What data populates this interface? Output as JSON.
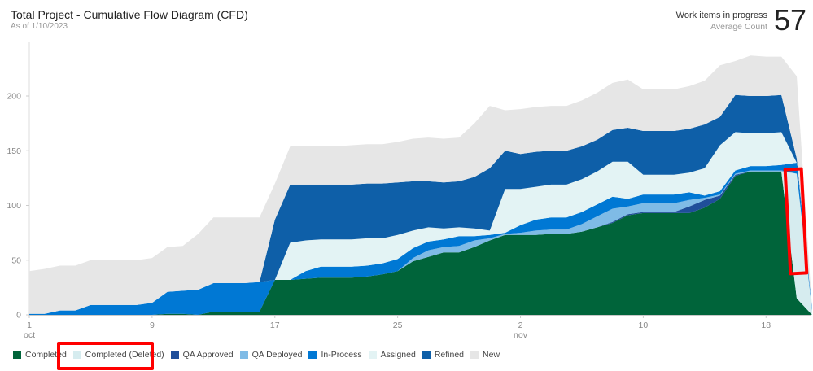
{
  "header": {
    "title": "Total Project - Cumulative Flow Diagram (CFD)",
    "subtitle": "As of 1/10/2023"
  },
  "kpi": {
    "label": "Work items in progress",
    "sublabel": "Average Count",
    "value": "57"
  },
  "legend": [
    {
      "label": "Completed",
      "color": "#00643a"
    },
    {
      "label": "Completed (Deleted)",
      "color": "#d6ecef"
    },
    {
      "label": "QA Approved",
      "color": "#1f4e9a"
    },
    {
      "label": "QA Deployed",
      "color": "#7fbbe6"
    },
    {
      "label": "In-Process",
      "color": "#0078d4"
    },
    {
      "label": "Assigned",
      "color": "#e3f3f4"
    },
    {
      "label": "Refined",
      "color": "#0e5fa8"
    },
    {
      "label": "New",
      "color": "#e6e6e6"
    }
  ],
  "axis": {
    "y_ticks": [
      "0",
      "50",
      "100",
      "150",
      "200"
    ],
    "x_ticks": [
      {
        "day": "1",
        "month": "oct"
      },
      {
        "day": "9",
        "month": ""
      },
      {
        "day": "17",
        "month": ""
      },
      {
        "day": "25",
        "month": ""
      },
      {
        "day": "2",
        "month": "nov"
      },
      {
        "day": "10",
        "month": ""
      },
      {
        "day": "18",
        "month": ""
      }
    ]
  },
  "chart_data": {
    "type": "area",
    "title": "Total Project - Cumulative Flow Diagram (CFD)",
    "subtitle": "As of 1/10/2023",
    "xlabel": "",
    "ylabel": "",
    "ylim": [
      0,
      240
    ],
    "grid": false,
    "legend_position": "bottom",
    "stacked": true,
    "x": [
      "Oct 1",
      "Oct 2",
      "Oct 3",
      "Oct 4",
      "Oct 5",
      "Oct 6",
      "Oct 7",
      "Oct 8",
      "Oct 9",
      "Oct 10",
      "Oct 11",
      "Oct 12",
      "Oct 13",
      "Oct 14",
      "Oct 15",
      "Oct 16",
      "Oct 17",
      "Oct 18",
      "Oct 19",
      "Oct 20",
      "Oct 21",
      "Oct 22",
      "Oct 23",
      "Oct 24",
      "Oct 25",
      "Oct 26",
      "Oct 27",
      "Oct 28",
      "Oct 29",
      "Oct 30",
      "Oct 31",
      "Nov 1",
      "Nov 2",
      "Nov 3",
      "Nov 4",
      "Nov 5",
      "Nov 6",
      "Nov 7",
      "Nov 8",
      "Nov 9",
      "Nov 10",
      "Nov 11",
      "Nov 12",
      "Nov 13",
      "Nov 14",
      "Nov 15",
      "Nov 16",
      "Nov 17",
      "Nov 18",
      "Nov 19",
      "Nov 20",
      "Nov 21"
    ],
    "series": [
      {
        "name": "Completed",
        "values": [
          0,
          0,
          0,
          0,
          0,
          0,
          0,
          0,
          0,
          1,
          1,
          0,
          3,
          3,
          3,
          3,
          32,
          32,
          33,
          34,
          34,
          34,
          35,
          37,
          40,
          49,
          53,
          57,
          57,
          62,
          68,
          73,
          73,
          73,
          74,
          74,
          76,
          80,
          84,
          91,
          93,
          93,
          93,
          93,
          98,
          106,
          127,
          131,
          131,
          131,
          15,
          0
        ]
      },
      {
        "name": "Completed (Deleted)",
        "values": [
          0,
          0,
          0,
          0,
          0,
          0,
          0,
          0,
          0,
          0,
          0,
          0,
          0,
          0,
          0,
          0,
          0,
          0,
          0,
          0,
          0,
          0,
          0,
          0,
          0,
          0,
          0,
          0,
          0,
          0,
          0,
          0,
          0,
          0,
          0,
          0,
          0,
          0,
          0,
          0,
          0,
          0,
          0,
          0,
          0,
          0,
          0,
          0,
          0,
          0,
          114,
          4
        ]
      },
      {
        "name": "QA Approved",
        "values": [
          0,
          0,
          0,
          0,
          0,
          0,
          0,
          0,
          0,
          0,
          0,
          0,
          0,
          0,
          0,
          0,
          0,
          0,
          0,
          0,
          0,
          0,
          0,
          0,
          0,
          0,
          0,
          0,
          0,
          0,
          0,
          0,
          0,
          0,
          0,
          0,
          0,
          0,
          1,
          1,
          1,
          1,
          1,
          6,
          7,
          3,
          1,
          0,
          0,
          0,
          0,
          0
        ]
      },
      {
        "name": "QA Deployed",
        "values": [
          0,
          0,
          0,
          0,
          0,
          0,
          0,
          0,
          0,
          0,
          0,
          0,
          0,
          0,
          0,
          0,
          0,
          0,
          0,
          0,
          0,
          0,
          0,
          0,
          0,
          3,
          6,
          5,
          6,
          6,
          2,
          1,
          2,
          4,
          4,
          4,
          7,
          10,
          12,
          7,
          8,
          8,
          8,
          6,
          2,
          1,
          1,
          1,
          1,
          1,
          0,
          0
        ]
      },
      {
        "name": "In-Process",
        "values": [
          1,
          1,
          4,
          4,
          9,
          9,
          9,
          9,
          11,
          20,
          21,
          23,
          26,
          26,
          26,
          27,
          0,
          0,
          7,
          10,
          10,
          10,
          10,
          10,
          11,
          9,
          8,
          7,
          9,
          4,
          3,
          1,
          7,
          10,
          11,
          11,
          11,
          11,
          11,
          7,
          8,
          8,
          8,
          7,
          2,
          3,
          3,
          4,
          4,
          5,
          10,
          2
        ]
      },
      {
        "name": "Assigned",
        "values": [
          0,
          0,
          0,
          0,
          0,
          0,
          0,
          0,
          0,
          0,
          0,
          0,
          0,
          0,
          0,
          0,
          0,
          34,
          28,
          25,
          25,
          25,
          25,
          23,
          22,
          16,
          13,
          10,
          8,
          7,
          4,
          40,
          33,
          30,
          30,
          30,
          30,
          30,
          32,
          34,
          18,
          18,
          18,
          18,
          25,
          42,
          35,
          30,
          30,
          30,
          0,
          0
        ]
      },
      {
        "name": "Refined",
        "values": [
          0,
          0,
          0,
          0,
          0,
          0,
          0,
          0,
          0,
          0,
          0,
          0,
          0,
          0,
          0,
          0,
          55,
          53,
          51,
          50,
          50,
          50,
          50,
          50,
          48,
          45,
          42,
          42,
          42,
          47,
          57,
          35,
          32,
          32,
          31,
          31,
          30,
          29,
          29,
          31,
          40,
          40,
          40,
          40,
          40,
          26,
          34,
          34,
          34,
          34,
          4,
          0
        ]
      },
      {
        "name": "New",
        "values": [
          39,
          41,
          41,
          41,
          41,
          41,
          41,
          41,
          41,
          41,
          41,
          51,
          60,
          60,
          60,
          59,
          33,
          35,
          35,
          35,
          35,
          36,
          36,
          36,
          37,
          39,
          40,
          40,
          40,
          49,
          57,
          37,
          41,
          41,
          41,
          41,
          42,
          43,
          43,
          44,
          38,
          38,
          38,
          39,
          40,
          47,
          31,
          37,
          36,
          35,
          75,
          0
        ]
      }
    ]
  }
}
